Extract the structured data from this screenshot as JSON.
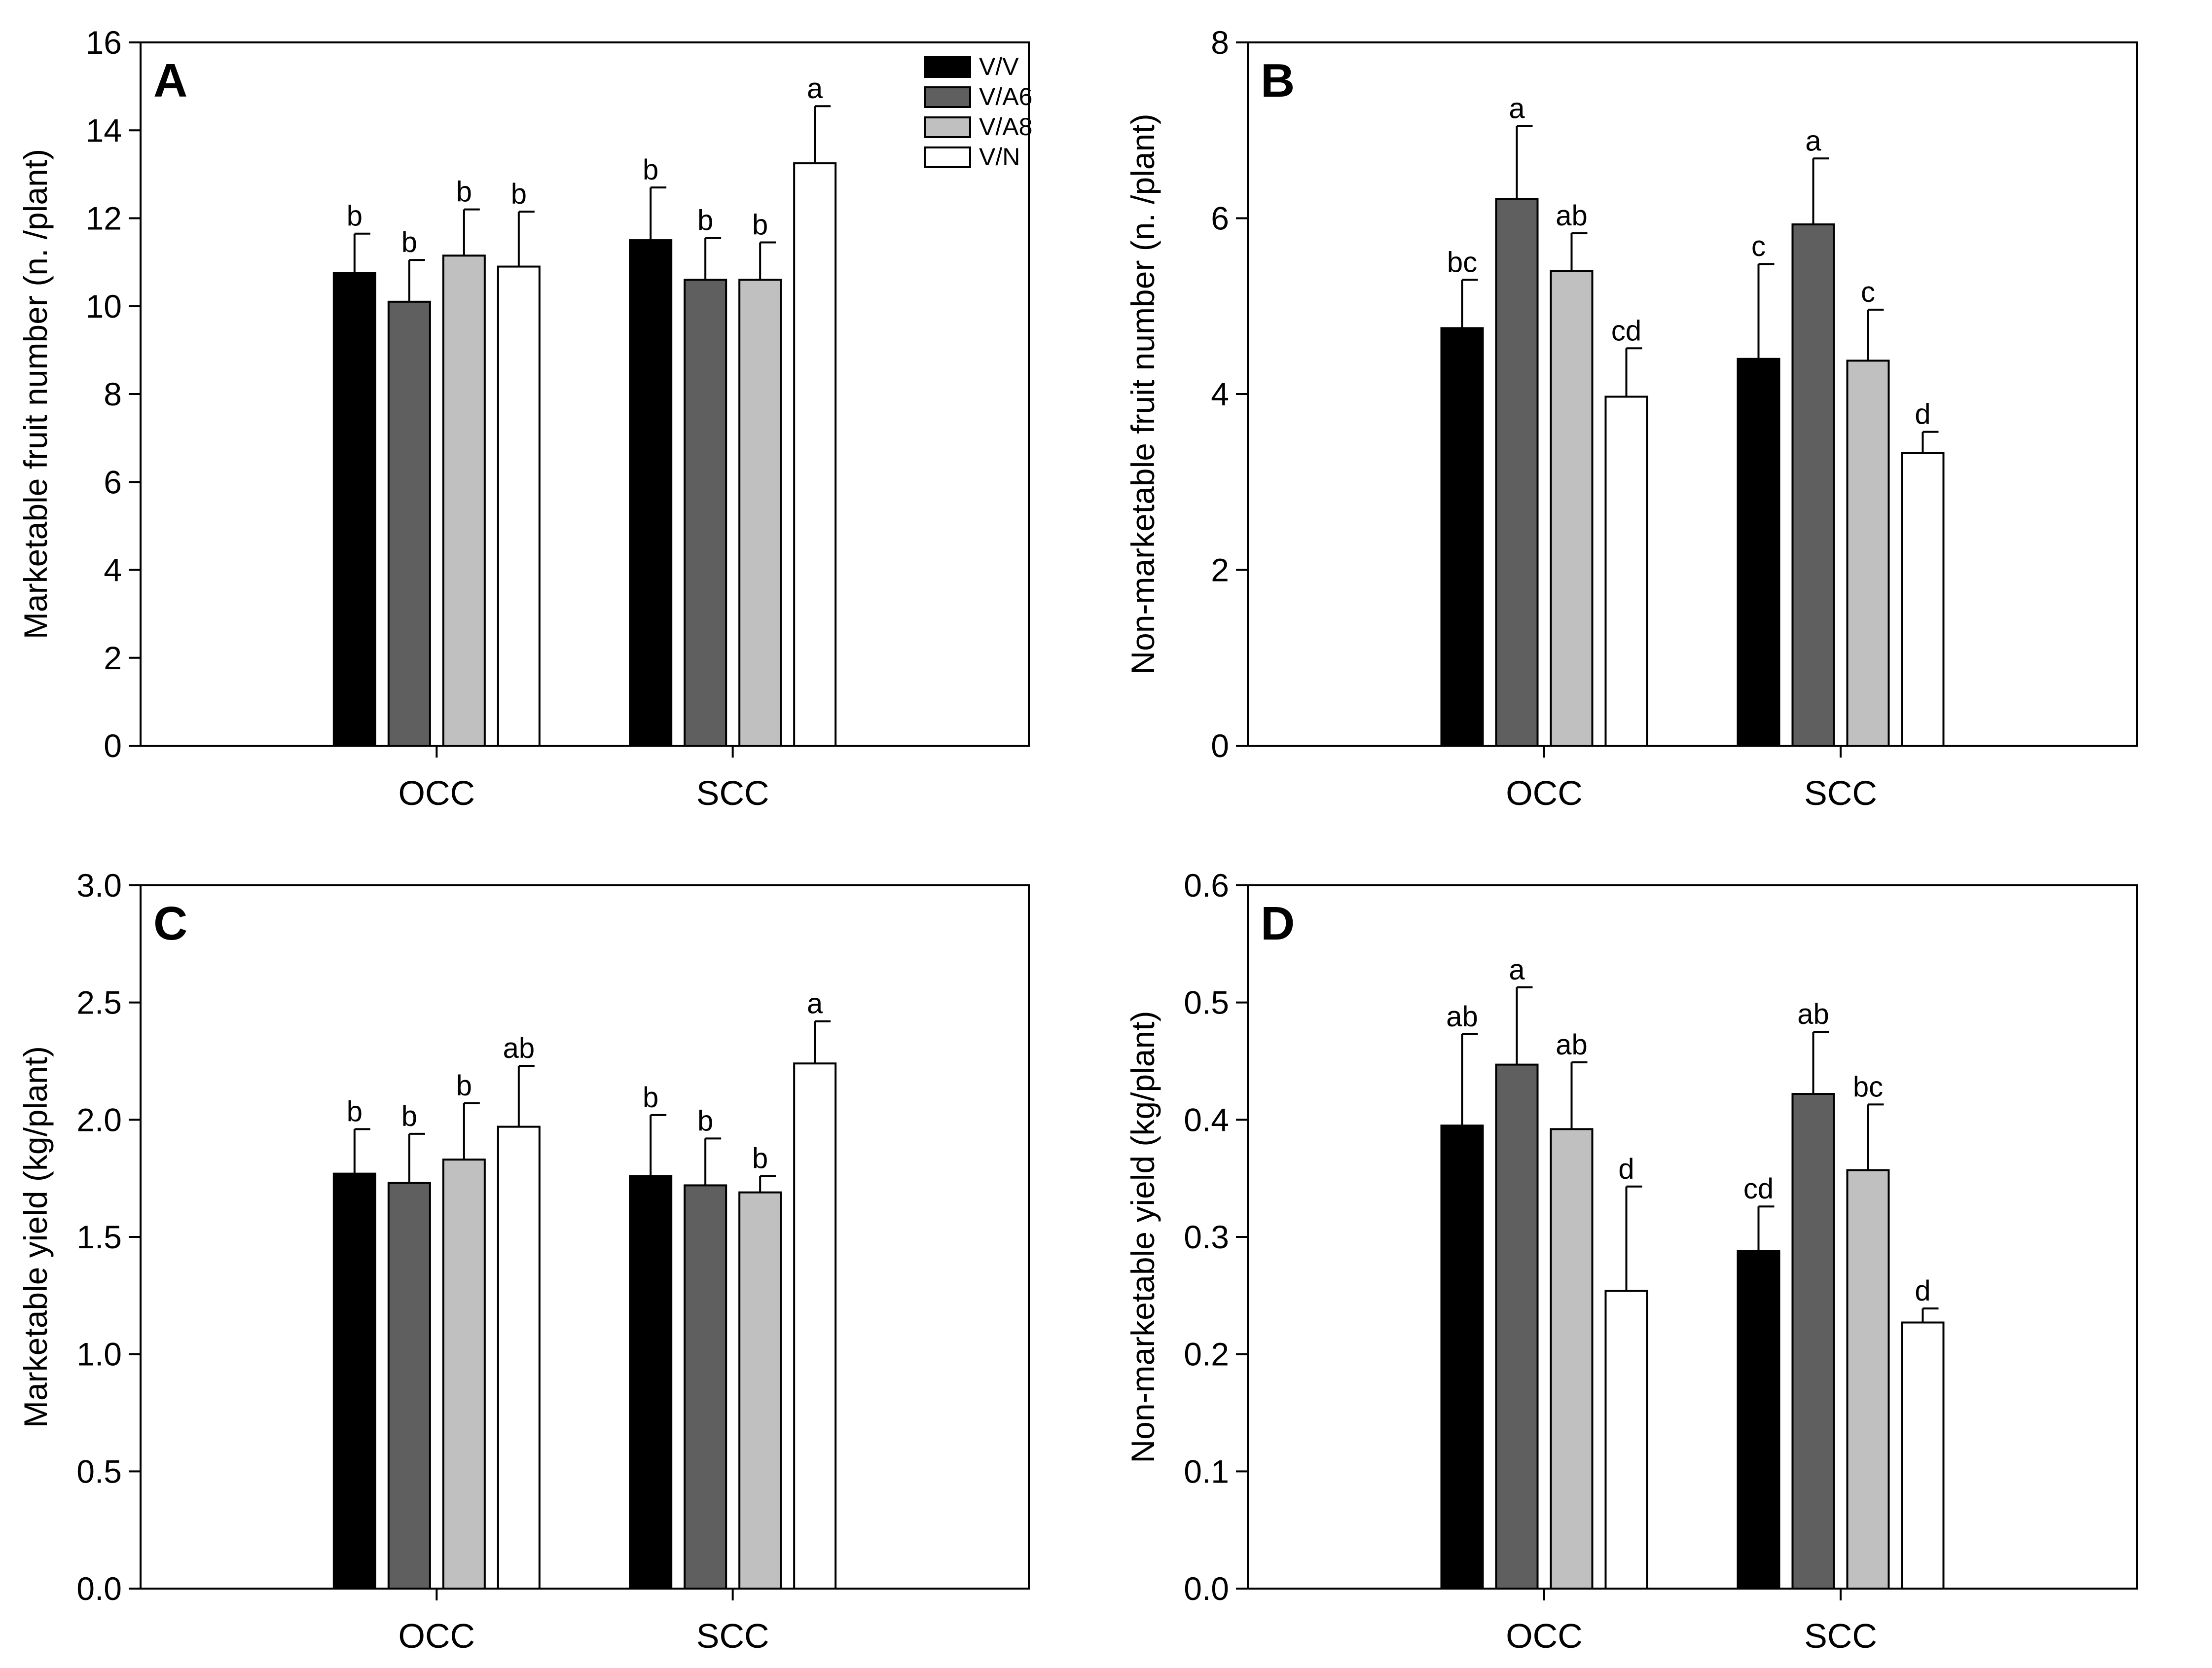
{
  "colors": {
    "V/V": "#000000",
    "V/A6": "#5f5f5f",
    "V/A8": "#c0c0c0",
    "V/N": "#ffffff"
  },
  "legend": [
    "V/V",
    "V/A6",
    "V/A8",
    "V/N"
  ],
  "chart_data": [
    {
      "type": "bar",
      "panel": "A",
      "ylabel": "Marketable fruit number (n. /plant)",
      "categories": [
        "OCC",
        "SCC"
      ],
      "ylim": [
        0,
        16
      ],
      "yticks": [
        "0",
        "2",
        "4",
        "6",
        "8",
        "10",
        "12",
        "14",
        "16"
      ],
      "series": [
        {
          "name": "V/V",
          "values": [
            10.75,
            11.5
          ],
          "errors": [
            0.9,
            1.2
          ],
          "letters": [
            "b",
            "b"
          ]
        },
        {
          "name": "V/A6",
          "values": [
            10.1,
            10.6
          ],
          "errors": [
            0.95,
            0.95
          ],
          "letters": [
            "b",
            "b"
          ]
        },
        {
          "name": "V/A8",
          "values": [
            11.15,
            10.6
          ],
          "errors": [
            1.05,
            0.85
          ],
          "letters": [
            "b",
            "b"
          ]
        },
        {
          "name": "V/N",
          "values": [
            10.9,
            13.25
          ],
          "errors": [
            1.25,
            1.3
          ],
          "letters": [
            "b",
            "a"
          ]
        }
      ]
    },
    {
      "type": "bar",
      "panel": "B",
      "ylabel": "Non-marketable fruit number (n. /plant)",
      "categories": [
        "OCC",
        "SCC"
      ],
      "ylim": [
        0,
        8
      ],
      "yticks": [
        "0",
        "2",
        "4",
        "6",
        "8"
      ],
      "series": [
        {
          "name": "V/V",
          "values": [
            4.75,
            4.4
          ],
          "errors": [
            0.55,
            1.08
          ],
          "letters": [
            "bc",
            "c"
          ]
        },
        {
          "name": "V/A6",
          "values": [
            6.22,
            5.93
          ],
          "errors": [
            0.83,
            0.75
          ],
          "letters": [
            "a",
            "a"
          ]
        },
        {
          "name": "V/A8",
          "values": [
            5.4,
            4.38
          ],
          "errors": [
            0.43,
            0.58
          ],
          "letters": [
            "ab",
            "c"
          ]
        },
        {
          "name": "V/N",
          "values": [
            3.97,
            3.33
          ],
          "errors": [
            0.55,
            0.24
          ],
          "letters": [
            "cd",
            "d"
          ]
        }
      ]
    },
    {
      "type": "bar",
      "panel": "C",
      "ylabel": "Marketable yield (kg/plant)",
      "categories": [
        "OCC",
        "SCC"
      ],
      "ylim": [
        0,
        3
      ],
      "yticks": [
        "0.0",
        "0.5",
        "1.0",
        "1.5",
        "2.0",
        "2.5",
        "3.0"
      ],
      "series": [
        {
          "name": "V/V",
          "values": [
            1.77,
            1.76
          ],
          "errors": [
            0.19,
            0.26
          ],
          "letters": [
            "b",
            "b"
          ]
        },
        {
          "name": "V/A6",
          "values": [
            1.73,
            1.72
          ],
          "errors": [
            0.21,
            0.2
          ],
          "letters": [
            "b",
            "b"
          ]
        },
        {
          "name": "V/A8",
          "values": [
            1.83,
            1.69
          ],
          "errors": [
            0.24,
            0.07
          ],
          "letters": [
            "b",
            "b"
          ]
        },
        {
          "name": "V/N",
          "values": [
            1.97,
            2.24
          ],
          "errors": [
            0.26,
            0.18
          ],
          "letters": [
            "ab",
            "a"
          ]
        }
      ]
    },
    {
      "type": "bar",
      "panel": "D",
      "ylabel": "Non-marketable yield (kg/plant)",
      "categories": [
        "OCC",
        "SCC"
      ],
      "ylim": [
        0,
        0.6
      ],
      "yticks": [
        "0.0",
        "0.1",
        "0.2",
        "0.3",
        "0.4",
        "0.5",
        "0.6"
      ],
      "series": [
        {
          "name": "V/V",
          "values": [
            0.395,
            0.288
          ],
          "errors": [
            0.078,
            0.038
          ],
          "letters": [
            "ab",
            "cd"
          ]
        },
        {
          "name": "V/A6",
          "values": [
            0.447,
            0.422
          ],
          "errors": [
            0.066,
            0.053
          ],
          "letters": [
            "a",
            "ab"
          ]
        },
        {
          "name": "V/A8",
          "values": [
            0.392,
            0.357
          ],
          "errors": [
            0.057,
            0.056
          ],
          "letters": [
            "ab",
            "bc"
          ]
        },
        {
          "name": "V/N",
          "values": [
            0.254,
            0.227
          ],
          "errors": [
            0.089,
            0.012
          ],
          "letters": [
            "d",
            "d"
          ]
        }
      ]
    }
  ]
}
